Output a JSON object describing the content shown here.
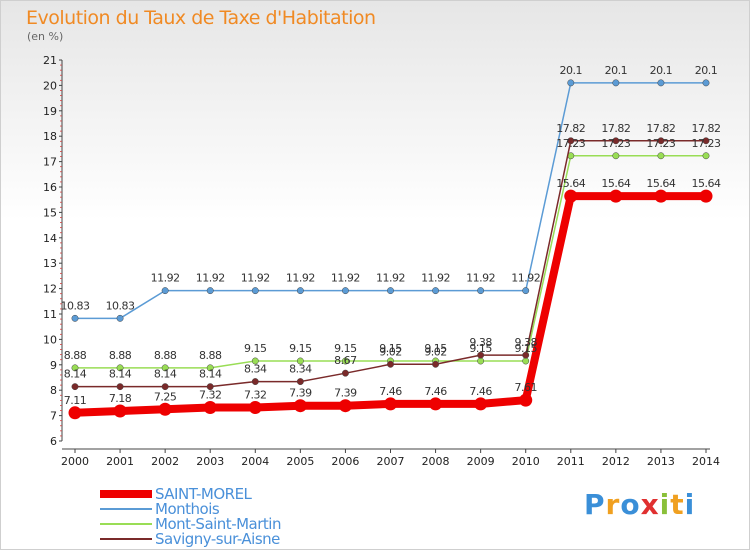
{
  "title": "Evolution du Taux de Taxe d'Habitation",
  "unit": "(en %)",
  "logo": {
    "letters": [
      "P",
      "r",
      "o",
      "x",
      "i",
      "t",
      "i"
    ],
    "colors": [
      "#3a8fd8",
      "#f0a020",
      "#3a8fd8",
      "#e03030",
      "#8ac03a",
      "#f0a020",
      "#3a8fd8"
    ]
  },
  "chart_data": {
    "type": "line",
    "x": [
      "2000",
      "2001",
      "2002",
      "2003",
      "2004",
      "2005",
      "2006",
      "2007",
      "2008",
      "2009",
      "2010",
      "2011",
      "2012",
      "2013",
      "2014"
    ],
    "ylim": [
      6,
      21
    ],
    "yticks": [
      6,
      7,
      8,
      9,
      10,
      11,
      12,
      13,
      14,
      15,
      16,
      17,
      18,
      19,
      20,
      21
    ],
    "grid": false,
    "legend_position": "bottom-left",
    "series": [
      {
        "name": "SAINT-MOREL",
        "color": "#ee0000",
        "bold": true,
        "values": [
          7.11,
          7.18,
          7.25,
          7.32,
          7.32,
          7.39,
          7.39,
          7.46,
          7.46,
          7.46,
          7.61,
          15.64,
          15.64,
          15.64,
          15.64
        ]
      },
      {
        "name": "Monthois",
        "color": "#5b9bd5",
        "values": [
          10.83,
          10.83,
          11.92,
          11.92,
          11.92,
          11.92,
          11.92,
          11.92,
          11.92,
          11.92,
          11.92,
          20.1,
          20.1,
          20.1,
          20.1
        ]
      },
      {
        "name": "Mont-Saint-Martin",
        "color": "#99dd55",
        "values": [
          8.88,
          8.88,
          8.88,
          8.88,
          9.15,
          9.15,
          9.15,
          9.15,
          9.15,
          9.15,
          9.15,
          17.23,
          17.23,
          17.23,
          17.23
        ]
      },
      {
        "name": "Savigny-sur-Aisne",
        "color": "#7a2a2a",
        "values": [
          8.14,
          8.14,
          8.14,
          8.14,
          8.34,
          8.34,
          8.67,
          9.02,
          9.02,
          9.38,
          9.38,
          17.82,
          17.82,
          17.82,
          17.82
        ]
      }
    ],
    "value_labels": [
      [
        "7.11",
        "7.18",
        "7.25",
        "7.32",
        "7.32",
        "7.39",
        "7.39",
        "7.46",
        "7.46",
        "7.46",
        "7.61",
        "15.64",
        "15.64",
        "15.64",
        "15.64"
      ],
      [
        "10.83",
        "10.83",
        "11.92",
        "11.92",
        "11.92",
        "11.92",
        "11.92",
        "11.92",
        "11.92",
        "11.92",
        "11.92",
        "20.1",
        "20.1",
        "20.1",
        "20.1"
      ],
      [
        "8.88",
        "8.88",
        "8.88",
        "8.88",
        "9.15",
        "9.15",
        "9.15",
        "9.15",
        "9.15",
        "9.15",
        "9.15",
        "17.23",
        "17.23",
        "17.23",
        "17.23"
      ],
      [
        "8.14",
        "8.14",
        "8.14",
        "8.14",
        "8.34",
        "8.34",
        "8.67",
        "9.02",
        "9.02",
        "9.38",
        "9.38",
        "17.82",
        "17.82",
        "17.82",
        "17.82"
      ]
    ]
  }
}
